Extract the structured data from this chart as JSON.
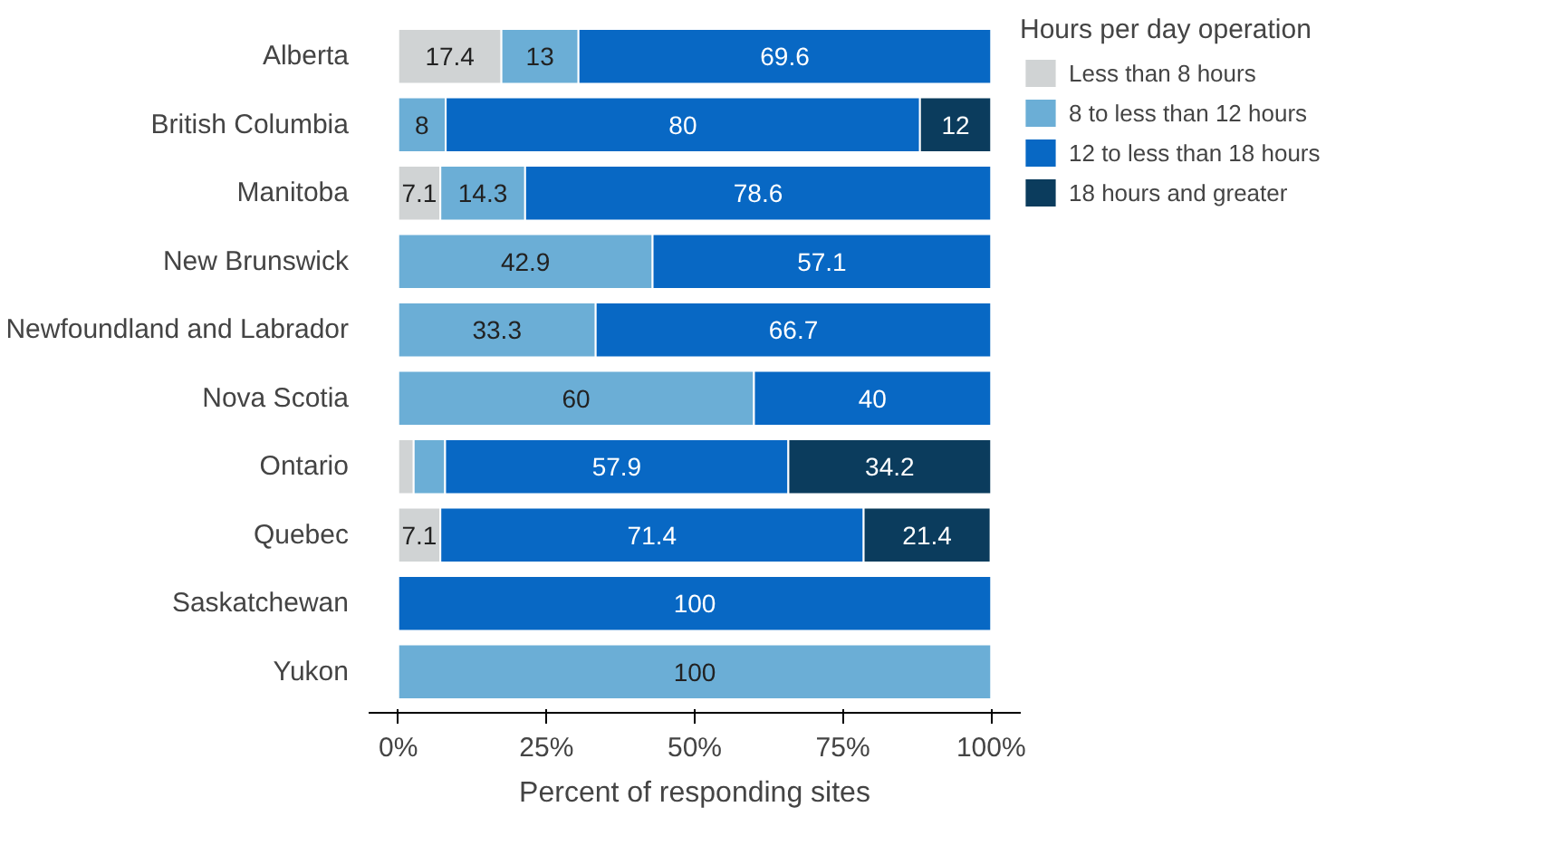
{
  "chart_data": {
    "type": "bar",
    "orientation": "horizontal",
    "stacked": true,
    "xlabel": "Percent of responding sites",
    "legend_title": "Hours per day operation",
    "legend": "right",
    "grid": false,
    "categories": [
      "Alberta",
      "British Columbia",
      "Manitoba",
      "New Brunswick",
      "Newfoundland and Labrador",
      "Nova Scotia",
      "Ontario",
      "Quebec",
      "Saskatchewan",
      "Yukon"
    ],
    "xlim": [
      -5,
      105
    ],
    "xticks": [
      {
        "value": 0,
        "label": "0%"
      },
      {
        "value": 25,
        "label": "25%"
      },
      {
        "value": 50,
        "label": "50%"
      },
      {
        "value": 75,
        "label": "75%"
      },
      {
        "value": 100,
        "label": "100%"
      }
    ],
    "series": [
      {
        "name": "Less than 8 hours",
        "color": "#d0d3d4",
        "values": [
          17.4,
          null,
          7.1,
          null,
          null,
          null,
          2.6,
          7.1,
          null,
          null
        ],
        "value_labels": [
          "17.4",
          null,
          "7.1",
          null,
          null,
          null,
          null,
          "7.1",
          null,
          null
        ]
      },
      {
        "name": "8 to less than 12 hours",
        "color": "#6baed6",
        "values": [
          13,
          8,
          14.3,
          42.9,
          33.3,
          60,
          5.3,
          null,
          null,
          100
        ],
        "value_labels": [
          "13",
          "8",
          "14.3",
          "42.9",
          "33.3",
          "60",
          null,
          null,
          null,
          "100"
        ]
      },
      {
        "name": "12 to less than 18 hours",
        "color": "#0868c4",
        "values": [
          69.6,
          80,
          78.6,
          57.1,
          66.7,
          40,
          57.9,
          71.4,
          100,
          null
        ],
        "value_labels": [
          "69.6",
          "80",
          "78.6",
          "57.1",
          "66.7",
          "40",
          "57.9",
          "71.4",
          "100",
          null
        ]
      },
      {
        "name": "18 hours and greater",
        "color": "#0b3c5d",
        "values": [
          null,
          12,
          null,
          null,
          null,
          null,
          34.2,
          21.4,
          null,
          null
        ],
        "value_labels": [
          null,
          "12",
          null,
          null,
          null,
          null,
          "34.2",
          "21.4",
          null,
          null
        ]
      }
    ]
  }
}
